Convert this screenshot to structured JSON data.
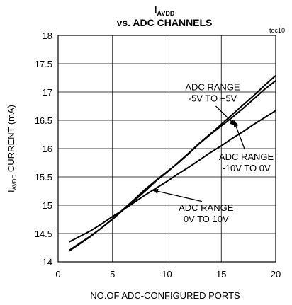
{
  "chart_data": {
    "type": "line",
    "title_main": "I",
    "title_sub": "AVDD",
    "title_line2": "vs. ADC CHANNELS",
    "tag": "toc10",
    "xlabel": "NO.OF ADC-CONFIGURED PORTS",
    "ylabel_main": "I",
    "ylabel_sub": "AVDD",
    "ylabel_rest": " CURRENT (mA)",
    "xlim": [
      0,
      20
    ],
    "ylim": [
      14,
      18
    ],
    "xticks": [
      0,
      5,
      10,
      15,
      20
    ],
    "xtick_labels": [
      "0",
      "5",
      "10",
      "15",
      "20"
    ],
    "yticks": [
      14,
      14.5,
      15,
      15.5,
      16,
      16.5,
      17,
      17.5,
      18
    ],
    "ytick_labels": [
      "14",
      "14.5",
      "15",
      "15.5",
      "16",
      "16.5",
      "17",
      "17.5",
      "18"
    ],
    "grid": true,
    "series": [
      {
        "name": "ADC RANGE -5V TO +5V",
        "x": [
          1,
          2,
          3,
          4,
          5,
          6,
          7,
          8,
          9,
          10,
          11,
          12,
          13,
          14,
          15,
          16,
          17,
          18,
          19,
          20
        ],
        "y": [
          14.2,
          14.33,
          14.46,
          14.6,
          14.75,
          14.92,
          15.08,
          15.25,
          15.43,
          15.58,
          15.75,
          15.92,
          16.1,
          16.26,
          16.43,
          16.6,
          16.77,
          16.94,
          17.12,
          17.29
        ]
      },
      {
        "name": "ADC RANGE -10V TO 0V",
        "x": [
          1,
          2,
          3,
          4,
          5,
          6,
          7,
          8,
          9,
          10,
          11,
          12,
          13,
          14,
          15,
          16,
          17,
          18,
          19,
          20
        ],
        "y": [
          14.19,
          14.32,
          14.45,
          14.6,
          14.76,
          14.93,
          15.1,
          15.28,
          15.44,
          15.59,
          15.74,
          15.91,
          16.09,
          16.25,
          16.4,
          16.55,
          16.71,
          16.88,
          17.05,
          17.2
        ]
      },
      {
        "name": "ADC RANGE 0V TO 10V",
        "x": [
          1,
          2,
          3,
          4,
          5,
          6,
          7,
          8,
          9,
          10,
          11,
          12,
          13,
          14,
          15,
          16,
          17,
          18,
          19,
          20
        ],
        "y": [
          14.35,
          14.45,
          14.55,
          14.67,
          14.8,
          14.92,
          15.05,
          15.18,
          15.3,
          15.42,
          15.55,
          15.67,
          15.8,
          15.93,
          16.05,
          16.18,
          16.3,
          16.43,
          16.55,
          16.67
        ]
      }
    ],
    "annotations": [
      {
        "lines": [
          "ADC RANGE",
          "-5V TO +5V"
        ],
        "x": 14.2,
        "y": 17.03,
        "arrow_to": [
          16.35,
          16.4
        ]
      },
      {
        "lines": [
          "ADC RANGE",
          "-10V TO 0V"
        ],
        "x": 17.3,
        "y": 15.8,
        "arrow_to": [
          16.15,
          16.5
        ]
      },
      {
        "lines": [
          "ADC RANGE",
          "0V TO 10V"
        ],
        "x": 13.6,
        "y": 14.9,
        "arrow_to": [
          8.6,
          15.27
        ]
      }
    ]
  }
}
